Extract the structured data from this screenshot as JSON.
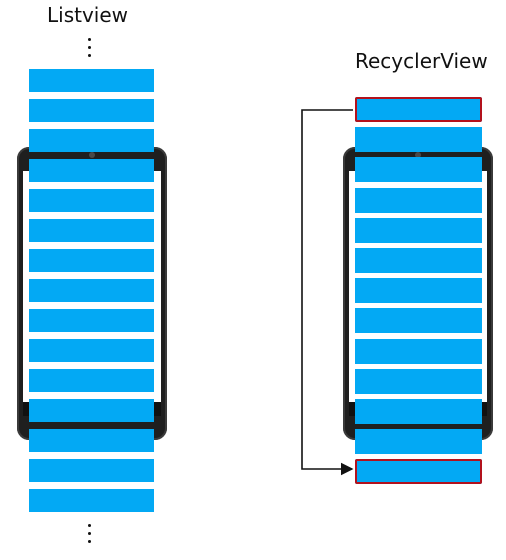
{
  "listview": {
    "title": "Listview",
    "item_count": 15
  },
  "recyclerview": {
    "title": "RecyclerView",
    "item_count": 13,
    "recycled_items": [
      0,
      12
    ]
  },
  "colors": {
    "item_fill": "#03a9f4",
    "recycled_outline": "#b3121d",
    "phone_body": "#1f1f1f",
    "arrow": "#111111"
  }
}
